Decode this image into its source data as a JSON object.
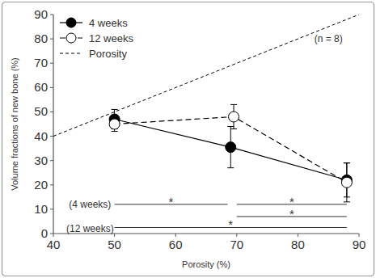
{
  "chart_data": {
    "type": "line",
    "xlabel": "Porosity (%)",
    "ylabel": "Volume fractions of new bone (%)",
    "xlim": [
      40,
      90
    ],
    "ylim": [
      0,
      90
    ],
    "xticks": [
      40,
      50,
      60,
      70,
      80,
      90
    ],
    "yticks": [
      0,
      10,
      20,
      30,
      40,
      50,
      60,
      70,
      80,
      90
    ],
    "grid": false,
    "legend": "upper left",
    "series": [
      {
        "name": "4 weeks",
        "color": "#000000",
        "marker": "filled-circle",
        "line_style": "solid",
        "x": [
          50,
          69,
          88
        ],
        "values": [
          47,
          35.5,
          22
        ],
        "errors": [
          4,
          8.5,
          7
        ]
      },
      {
        "name": "12 weeks",
        "color": "#000000",
        "marker": "open-circle",
        "line_style": "dashed",
        "x": [
          50,
          69.5,
          88
        ],
        "values": [
          45,
          48,
          21
        ],
        "errors": [
          3,
          5,
          8
        ]
      },
      {
        "name": "Porosity",
        "color": "#000000",
        "marker": "none",
        "line_style": "dotted",
        "x": [
          40,
          90
        ],
        "values": [
          40,
          90
        ]
      }
    ],
    "annotations": [
      {
        "text": "(n = 8)",
        "x": 85,
        "y": 80
      },
      {
        "text": "(4 weeks)",
        "x": 46,
        "y": 12
      },
      {
        "text": "(12 weeks)",
        "x": 46,
        "y": 2
      }
    ],
    "significance": [
      {
        "x1": 50,
        "x2": 68.5,
        "y": 12,
        "label": "*"
      },
      {
        "x1": 70,
        "x2": 88,
        "y": 12,
        "label": "*"
      },
      {
        "x1": 70,
        "x2": 88,
        "y": 7,
        "label": "*"
      },
      {
        "x1": 50,
        "x2": 88,
        "y": 2.5,
        "label": "*"
      }
    ]
  }
}
